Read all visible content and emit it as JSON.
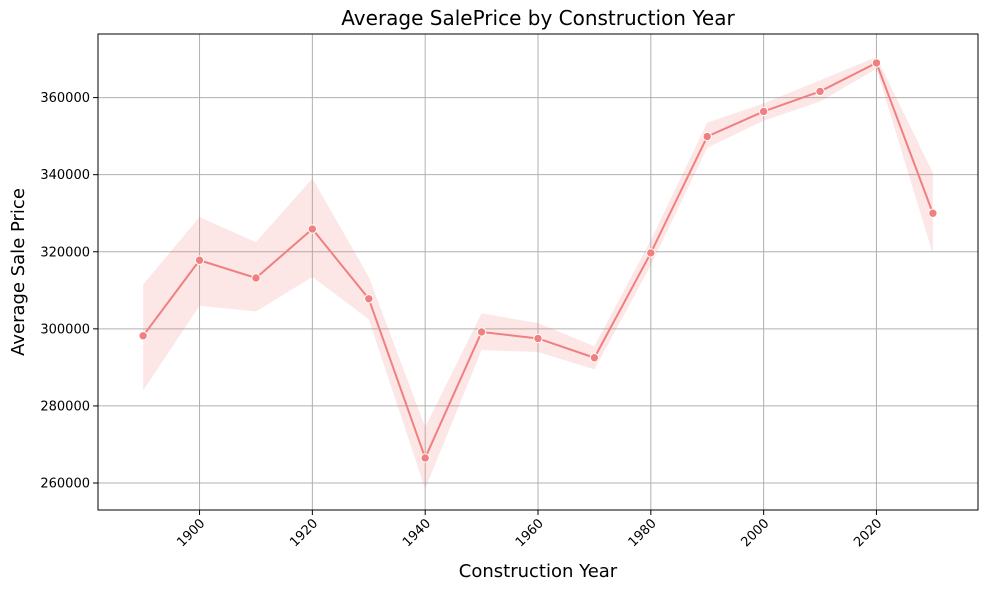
{
  "chart_data": {
    "type": "line",
    "title": "Average SalePrice by Construction Year",
    "xlabel": "Construction Year",
    "ylabel": "Average Sale Price",
    "xlim": [
      1882,
      2038
    ],
    "ylim": [
      253000,
      376500
    ],
    "x_ticks": [
      "1900",
      "1920",
      "1940",
      "1960",
      "1980",
      "2000",
      "2020"
    ],
    "y_ticks": [
      "260000",
      "280000",
      "300000",
      "320000",
      "340000",
      "360000"
    ],
    "x_tick_rotation": 45,
    "grid": true,
    "legend": "none",
    "colors": {
      "line": "#f08080",
      "band": "#f08080",
      "grid": "#b0b0b0"
    },
    "series": [
      {
        "x": [
          1890,
          1900,
          1910,
          1920,
          1930,
          1940,
          1950,
          1960,
          1970,
          1980,
          1990,
          2000,
          2010,
          2020,
          2030
        ],
        "values": [
          298200,
          317800,
          313200,
          325900,
          307800,
          266500,
          299200,
          297500,
          292500,
          319700,
          349900,
          356400,
          361600,
          369000,
          330000
        ],
        "ci_low": [
          284000,
          306000,
          304500,
          313500,
          302500,
          258500,
          294500,
          294000,
          289500,
          316500,
          347000,
          354000,
          359000,
          367500,
          319500
        ],
        "ci_high": [
          311500,
          329000,
          322500,
          339000,
          313500,
          274500,
          304000,
          301500,
          295500,
          323000,
          353500,
          358500,
          364500,
          370500,
          340500
        ]
      }
    ]
  }
}
